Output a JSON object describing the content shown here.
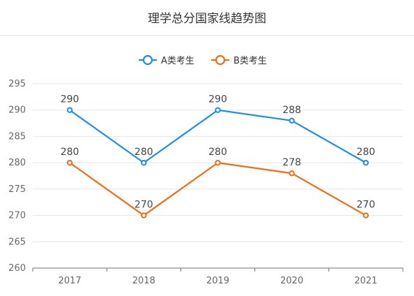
{
  "chart_data": {
    "type": "line",
    "title": "理学总分国家线趋势图",
    "categories": [
      "2017",
      "2018",
      "2019",
      "2020",
      "2021"
    ],
    "series": [
      {
        "name": "A类考生",
        "color": "#1a8cf0",
        "values": [
          290,
          280,
          290,
          288,
          280
        ]
      },
      {
        "name": "B类考生",
        "color": "#f26b12",
        "values": [
          280,
          270,
          280,
          278,
          270
        ]
      }
    ],
    "ylim": [
      260,
      295
    ],
    "yticks": [
      260,
      265,
      270,
      275,
      280,
      285,
      290,
      295
    ],
    "grid": true,
    "legend": "top-center",
    "data_labels": true
  }
}
